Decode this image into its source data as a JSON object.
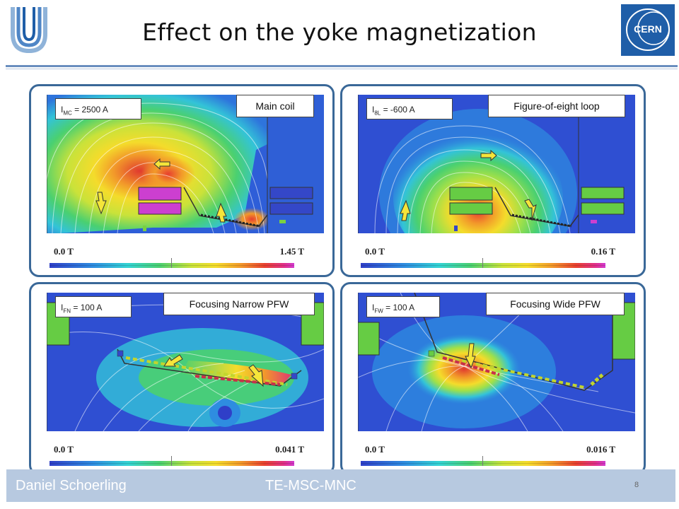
{
  "slide": {
    "title": "Effect on the yoke magnetization",
    "logos": {
      "left_logo_icon": "u-logo-icon",
      "right_logo_text": "CERN"
    }
  },
  "panels": [
    {
      "current_var": "I",
      "current_sub": "MC",
      "current_value": "= 2500 A",
      "label": "Main coil",
      "scale_min": "0.0 T",
      "scale_max": "1.45 T"
    },
    {
      "current_var": "I",
      "current_sub": "8L",
      "current_value": "= -600 A",
      "label": "Figure-of-eight loop",
      "scale_min": "0.0 T",
      "scale_max": "0.16 T"
    },
    {
      "current_var": "I",
      "current_sub": "FN",
      "current_value": "= 100 A",
      "label": "Focusing Narrow PFW",
      "scale_min": "0.0 T",
      "scale_max": "0.041 T"
    },
    {
      "current_var": "I",
      "current_sub": "FW",
      "current_value": "= 100 A",
      "label": "Focusing Wide PFW",
      "scale_min": "0.0 T",
      "scale_max": "0.016 T"
    }
  ],
  "footer": {
    "author": "Daniel Schoerling",
    "group": "TE-MSC-MNC",
    "page_number": "8"
  },
  "colors": {
    "accent": "#3a6898",
    "footer_bg": "#b7c9e0",
    "cern_blue": "#1f5ea8",
    "field_low": "#2f3fc8",
    "field_high": "#e0308a"
  }
}
